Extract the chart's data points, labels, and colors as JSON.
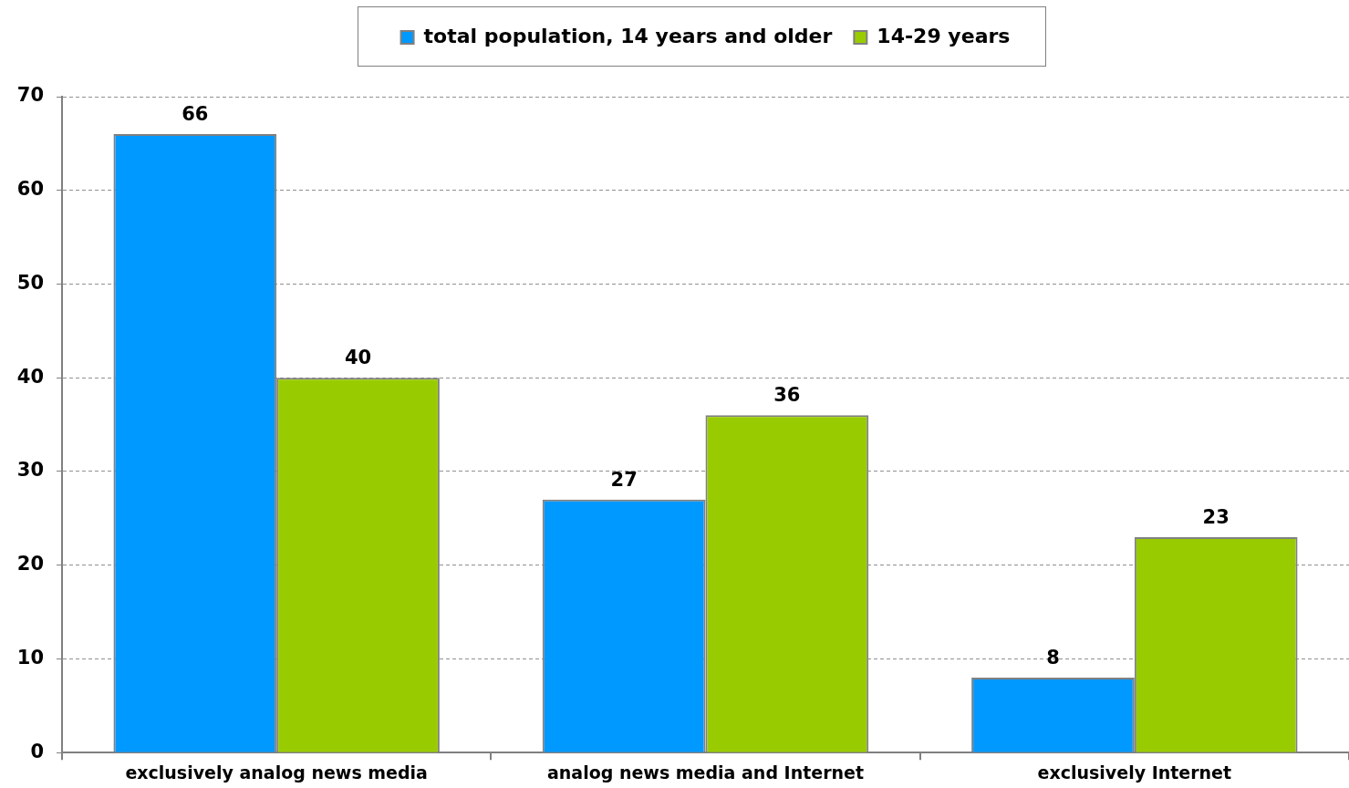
{
  "chart_data": {
    "type": "bar",
    "categories": [
      "exclusively analog news media",
      "analog news media and Internet",
      "exclusively Internet"
    ],
    "series": [
      {
        "name": "total population, 14 years and older",
        "color": "#0099ff",
        "values": [
          66,
          27,
          8
        ]
      },
      {
        "name": "14-29 years",
        "color": "#99cc00",
        "values": [
          40,
          36,
          23
        ]
      }
    ],
    "ylim": [
      0,
      70
    ],
    "yticks": [
      0,
      10,
      20,
      30,
      40,
      50,
      60,
      70
    ],
    "grid": "y",
    "legend": "top",
    "data_labels": true
  }
}
